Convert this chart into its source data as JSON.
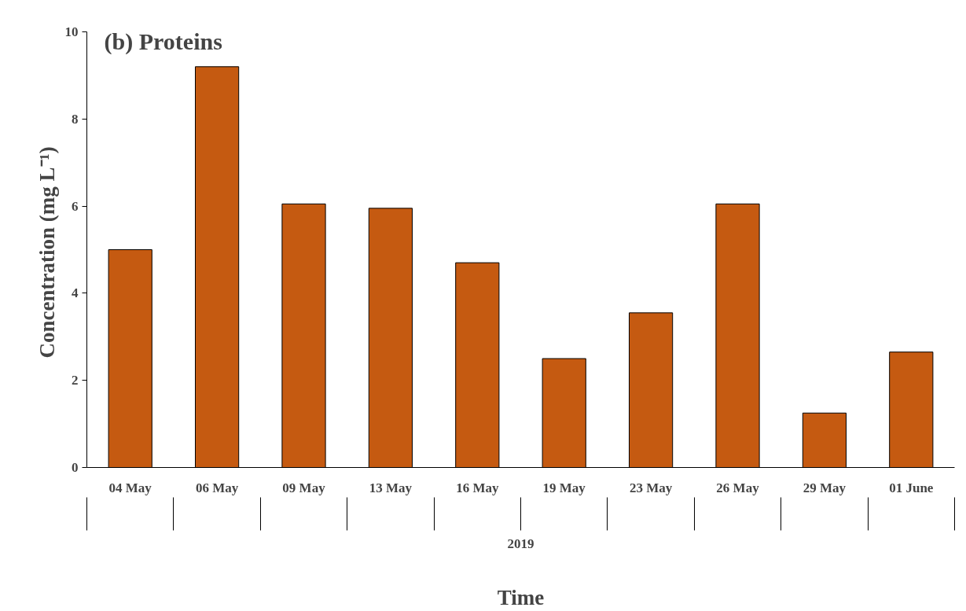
{
  "chart_data": {
    "type": "bar",
    "title": "(b) Proteins",
    "xlabel": "Time",
    "ylabel": "Concentration  (mg L⁻¹)",
    "categories": [
      "04 May",
      "06 May",
      "09 May",
      "13 May",
      "16 May",
      "19 May",
      "23 May",
      "26 May",
      "29 May",
      "01 June"
    ],
    "values": [
      5.0,
      9.2,
      6.05,
      5.95,
      4.7,
      2.5,
      3.55,
      6.05,
      1.25,
      2.65
    ],
    "color": "#c55a11",
    "ylim": [
      0,
      10
    ],
    "yticks": [
      0,
      2,
      4,
      6,
      8,
      10
    ],
    "grid": false,
    "annotations": [
      "2019"
    ]
  }
}
